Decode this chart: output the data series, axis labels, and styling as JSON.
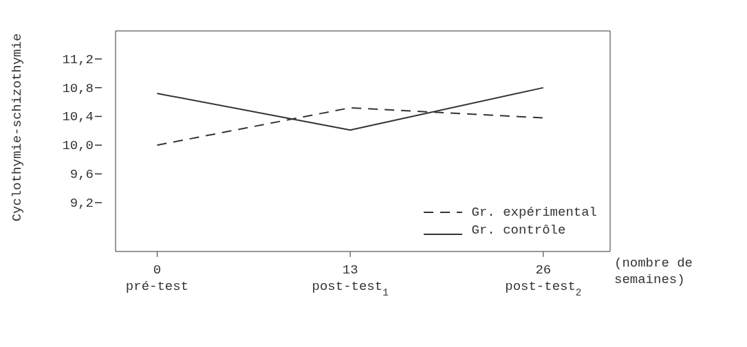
{
  "chart_data": {
    "type": "line",
    "ylabel": "Cyclothymie-schizothymie",
    "xlabel": "(nombre de semaines)",
    "x": [
      0,
      13,
      26
    ],
    "xlim": [
      -2.8,
      30.5
    ],
    "xticks": [
      0,
      13,
      26
    ],
    "annotations": [
      "pré-test",
      "post-test$_{1}$",
      "post-test$_{2}$"
    ],
    "ylim": [
      8.52,
      11.59
    ],
    "yticks": [
      {
        "value": 9.2,
        "label": "9,2"
      },
      {
        "value": 9.6,
        "label": "9,6"
      },
      {
        "value": 10.0,
        "label": "10,0"
      },
      {
        "value": 10.4,
        "label": "10,4"
      },
      {
        "value": 10.8,
        "label": "10,8"
      },
      {
        "value": 11.2,
        "label": "11,2"
      }
    ],
    "series": [
      {
        "name": "Gr. expérimental",
        "color": "#333333",
        "line_style": "dashed",
        "values": [
          10.0,
          10.52,
          10.38
        ]
      },
      {
        "name": "Gr. contrôle",
        "color": "#333333",
        "line_style": "solid",
        "values": [
          10.72,
          10.21,
          10.8
        ]
      }
    ],
    "legend": "bottom right",
    "grid": false,
    "marker": "none"
  }
}
